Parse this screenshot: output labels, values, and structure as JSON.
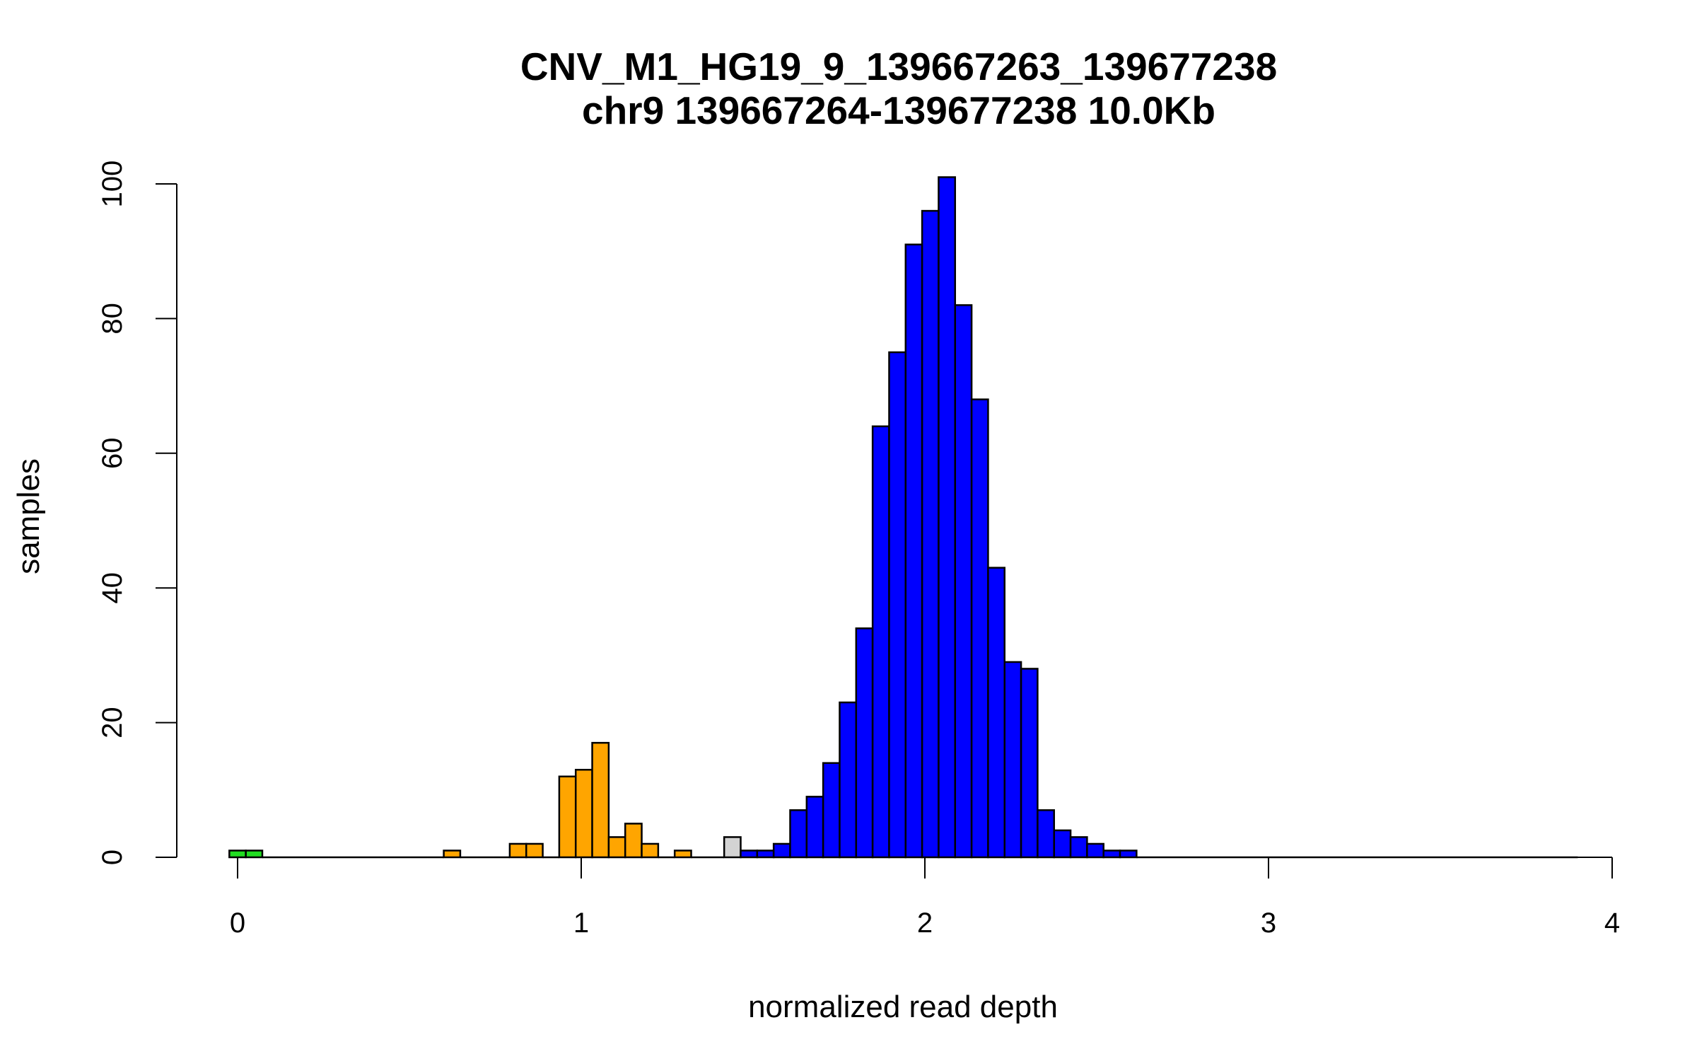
{
  "chart_data": {
    "type": "bar",
    "title": "CNV_M1_HG19_9_139667263_139677238",
    "subtitle": "chr9 139667264-139677238 10.0Kb",
    "xlabel": "normalized read depth",
    "ylabel": "samples",
    "xlim": [
      0,
      4
    ],
    "ylim": [
      0,
      100
    ],
    "x_ticks": [
      "0",
      "1",
      "2",
      "3",
      "4"
    ],
    "y_ticks": [
      "0",
      "20",
      "40",
      "60",
      "80",
      "100"
    ],
    "grid": false,
    "legend": "none",
    "bin_width": 0.048,
    "bin_start": -0.024,
    "colors": {
      "green": "#22dd22",
      "orange": "#ffa500",
      "gray": "#d3d3d3",
      "blue": "#0000ff",
      "outline": "#000000"
    },
    "bins": [
      {
        "x0": -0.024,
        "x1": 0.024,
        "count": 1,
        "color": "green"
      },
      {
        "x0": 0.024,
        "x1": 0.072,
        "count": 1,
        "color": "green"
      },
      {
        "x0": 0.072,
        "x1": 0.12,
        "count": 0,
        "color": "orange"
      },
      {
        "x0": 0.12,
        "x1": 0.168,
        "count": 0,
        "color": "orange"
      },
      {
        "x0": 0.168,
        "x1": 0.216,
        "count": 0,
        "color": "orange"
      },
      {
        "x0": 0.216,
        "x1": 0.264,
        "count": 0,
        "color": "orange"
      },
      {
        "x0": 0.264,
        "x1": 0.312,
        "count": 0,
        "color": "orange"
      },
      {
        "x0": 0.312,
        "x1": 0.36,
        "count": 0,
        "color": "orange"
      },
      {
        "x0": 0.36,
        "x1": 0.408,
        "count": 0,
        "color": "orange"
      },
      {
        "x0": 0.408,
        "x1": 0.456,
        "count": 0,
        "color": "orange"
      },
      {
        "x0": 0.456,
        "x1": 0.504,
        "count": 0,
        "color": "orange"
      },
      {
        "x0": 0.504,
        "x1": 0.552,
        "count": 0,
        "color": "orange"
      },
      {
        "x0": 0.552,
        "x1": 0.6,
        "count": 0,
        "color": "orange"
      },
      {
        "x0": 0.6,
        "x1": 0.648,
        "count": 1,
        "color": "orange"
      },
      {
        "x0": 0.648,
        "x1": 0.696,
        "count": 0,
        "color": "orange"
      },
      {
        "x0": 0.696,
        "x1": 0.744,
        "count": 0,
        "color": "orange"
      },
      {
        "x0": 0.744,
        "x1": 0.792,
        "count": 0,
        "color": "orange"
      },
      {
        "x0": 0.792,
        "x1": 0.84,
        "count": 2,
        "color": "orange"
      },
      {
        "x0": 0.84,
        "x1": 0.888,
        "count": 2,
        "color": "orange"
      },
      {
        "x0": 0.888,
        "x1": 0.936,
        "count": 0,
        "color": "orange"
      },
      {
        "x0": 0.936,
        "x1": 0.984,
        "count": 12,
        "color": "orange"
      },
      {
        "x0": 0.984,
        "x1": 1.032,
        "count": 13,
        "color": "orange"
      },
      {
        "x0": 1.032,
        "x1": 1.08,
        "count": 17,
        "color": "orange"
      },
      {
        "x0": 1.08,
        "x1": 1.128,
        "count": 3,
        "color": "orange"
      },
      {
        "x0": 1.128,
        "x1": 1.176,
        "count": 5,
        "color": "orange"
      },
      {
        "x0": 1.176,
        "x1": 1.224,
        "count": 2,
        "color": "orange"
      },
      {
        "x0": 1.224,
        "x1": 1.272,
        "count": 0,
        "color": "orange"
      },
      {
        "x0": 1.272,
        "x1": 1.32,
        "count": 1,
        "color": "orange"
      },
      {
        "x0": 1.32,
        "x1": 1.368,
        "count": 0,
        "color": "orange"
      },
      {
        "x0": 1.368,
        "x1": 1.416,
        "count": 0,
        "color": "gray"
      },
      {
        "x0": 1.416,
        "x1": 1.464,
        "count": 3,
        "color": "gray"
      },
      {
        "x0": 1.464,
        "x1": 1.512,
        "count": 1,
        "color": "blue"
      },
      {
        "x0": 1.512,
        "x1": 1.56,
        "count": 1,
        "color": "blue"
      },
      {
        "x0": 1.56,
        "x1": 1.608,
        "count": 2,
        "color": "blue"
      },
      {
        "x0": 1.608,
        "x1": 1.656,
        "count": 7,
        "color": "blue"
      },
      {
        "x0": 1.656,
        "x1": 1.704,
        "count": 9,
        "color": "blue"
      },
      {
        "x0": 1.704,
        "x1": 1.752,
        "count": 14,
        "color": "blue"
      },
      {
        "x0": 1.752,
        "x1": 1.8,
        "count": 23,
        "color": "blue"
      },
      {
        "x0": 1.8,
        "x1": 1.848,
        "count": 34,
        "color": "blue"
      },
      {
        "x0": 1.848,
        "x1": 1.896,
        "count": 64,
        "color": "blue"
      },
      {
        "x0": 1.896,
        "x1": 1.944,
        "count": 75,
        "color": "blue"
      },
      {
        "x0": 1.944,
        "x1": 1.992,
        "count": 91,
        "color": "blue"
      },
      {
        "x0": 1.992,
        "x1": 2.04,
        "count": 96,
        "color": "blue"
      },
      {
        "x0": 2.04,
        "x1": 2.088,
        "count": 101,
        "color": "blue"
      },
      {
        "x0": 2.088,
        "x1": 2.136,
        "count": 82,
        "color": "blue"
      },
      {
        "x0": 2.136,
        "x1": 2.184,
        "count": 68,
        "color": "blue"
      },
      {
        "x0": 2.184,
        "x1": 2.232,
        "count": 43,
        "color": "blue"
      },
      {
        "x0": 2.232,
        "x1": 2.28,
        "count": 29,
        "color": "blue"
      },
      {
        "x0": 2.28,
        "x1": 2.328,
        "count": 28,
        "color": "blue"
      },
      {
        "x0": 2.328,
        "x1": 2.376,
        "count": 7,
        "color": "blue"
      },
      {
        "x0": 2.376,
        "x1": 2.424,
        "count": 4,
        "color": "blue"
      },
      {
        "x0": 2.424,
        "x1": 2.472,
        "count": 3,
        "color": "blue"
      },
      {
        "x0": 2.472,
        "x1": 2.52,
        "count": 2,
        "color": "blue"
      },
      {
        "x0": 2.52,
        "x1": 2.568,
        "count": 1,
        "color": "blue"
      },
      {
        "x0": 2.568,
        "x1": 2.616,
        "count": 1,
        "color": "blue"
      }
    ],
    "empty_bins_end": 3.9
  }
}
